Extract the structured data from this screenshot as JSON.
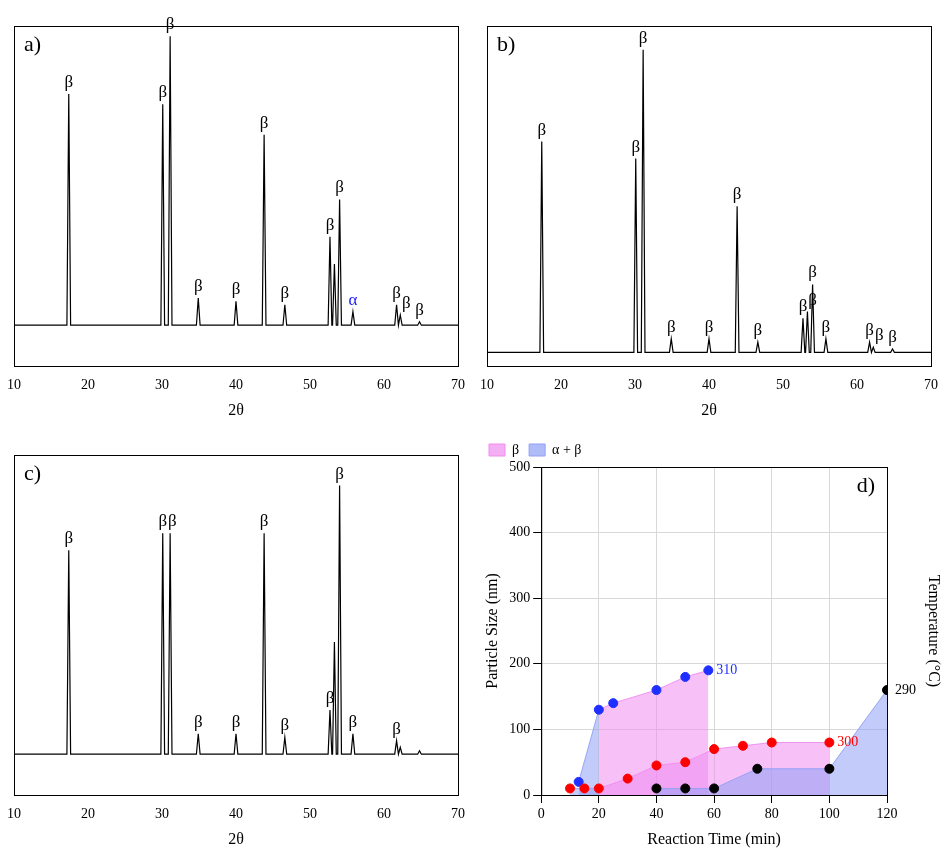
{
  "chart_data": [
    {
      "type": "line",
      "title": "a)",
      "x_label": "2θ",
      "color": "#000000",
      "xlim": [
        10,
        70
      ],
      "xticks": [
        10,
        20,
        30,
        40,
        50,
        60,
        70
      ],
      "ylim": [
        0,
        100
      ],
      "tick_labels": "x",
      "grid": false,
      "x": [
        10,
        17.15,
        17.4,
        17.65,
        29.85,
        30.1,
        30.35,
        30.85,
        31.1,
        31.35,
        34.65,
        34.9,
        35.15,
        39.75,
        40,
        40.25,
        43.55,
        43.8,
        44.05,
        46.35,
        46.6,
        46.85,
        52.45,
        52.7,
        52.95,
        53.05,
        53.3,
        53.55,
        53.75,
        54,
        54.25,
        55.55,
        55.8,
        56.05,
        61.45,
        61.7,
        61.95,
        61.95,
        62.2,
        62.45,
        64.55,
        64.8,
        65.05,
        70
      ],
      "values": [
        12,
        12,
        80,
        12,
        12,
        77,
        12,
        12,
        97,
        12,
        12,
        20,
        12,
        12,
        19,
        12,
        12,
        68,
        12,
        12,
        18,
        12,
        12,
        38,
        12,
        12,
        30,
        12,
        12,
        49,
        12,
        12,
        16,
        12,
        12,
        18,
        12,
        12,
        15,
        12,
        12,
        13,
        12,
        12
      ],
      "peak_labels": [
        {
          "x": 17.4,
          "text": "β",
          "color": "#000000"
        },
        {
          "x": 30.1,
          "text": "β",
          "color": "#000000"
        },
        {
          "x": 31.1,
          "text": "β",
          "color": "#000000"
        },
        {
          "x": 34.9,
          "text": "β",
          "color": "#000000"
        },
        {
          "x": 40,
          "text": "β",
          "color": "#000000"
        },
        {
          "x": 43.8,
          "text": "β",
          "color": "#000000"
        },
        {
          "x": 46.6,
          "text": "β",
          "color": "#000000"
        },
        {
          "x": 52.7,
          "text": "β",
          "color": "#000000"
        },
        {
          "x": 54,
          "text": "β",
          "color": "#000000"
        },
        {
          "x": 55.8,
          "text": "α",
          "color": "#1a1aff"
        },
        {
          "x": 61.7,
          "text": "β",
          "color": "#000000"
        },
        {
          "x": 62.2,
          "text": "β",
          "color": "#000000"
        },
        {
          "x": 64.8,
          "text": "β",
          "color": "#000000"
        }
      ]
    },
    {
      "type": "line",
      "title": "b)",
      "x_label": "2θ",
      "color": "#000000",
      "xlim": [
        10,
        70
      ],
      "xticks": [
        10,
        20,
        30,
        40,
        50,
        60,
        70
      ],
      "ylim": [
        0,
        100
      ],
      "tick_labels": "x",
      "grid": false,
      "x": [
        10,
        17.15,
        17.4,
        17.65,
        29.85,
        30.1,
        30.35,
        30.85,
        31.1,
        31.35,
        34.65,
        34.9,
        35.15,
        39.75,
        40,
        40.25,
        43.55,
        43.8,
        44.05,
        46.35,
        46.6,
        46.85,
        52.45,
        52.7,
        52.95,
        53.05,
        53.3,
        53.55,
        53.75,
        54,
        54.25,
        55.55,
        55.8,
        56.05,
        61.45,
        61.7,
        61.95,
        61.95,
        62.2,
        62.45,
        64.55,
        64.8,
        65.05,
        70
      ],
      "values": [
        4,
        4,
        66,
        4,
        4,
        61,
        4,
        4,
        93,
        4,
        4,
        8,
        4,
        4,
        8,
        4,
        4,
        47,
        4,
        4,
        7,
        4,
        4,
        14,
        4,
        4,
        16,
        4,
        4,
        24,
        4,
        4,
        8,
        4,
        4,
        7,
        4,
        4,
        5.5,
        4,
        4,
        5,
        4,
        4
      ],
      "peak_labels": [
        {
          "x": 17.4,
          "text": "β",
          "color": "#000000"
        },
        {
          "x": 30.1,
          "text": "β",
          "color": "#000000"
        },
        {
          "x": 31.1,
          "text": "β",
          "color": "#000000"
        },
        {
          "x": 34.9,
          "text": "β",
          "color": "#000000"
        },
        {
          "x": 40,
          "text": "β",
          "color": "#000000"
        },
        {
          "x": 43.8,
          "text": "β",
          "color": "#000000"
        },
        {
          "x": 46.6,
          "text": "β",
          "color": "#000000"
        },
        {
          "x": 52.7,
          "text": "β",
          "color": "#000000"
        },
        {
          "x": 53.3,
          "text": "β",
          "color": "#000000"
        },
        {
          "x": 54,
          "text": "β",
          "color": "#000000"
        },
        {
          "x": 55.8,
          "text": "β",
          "color": "#000000"
        },
        {
          "x": 61.7,
          "text": "β",
          "color": "#000000"
        },
        {
          "x": 62.2,
          "text": "β",
          "color": "#000000"
        },
        {
          "x": 64.8,
          "text": "β",
          "color": "#000000"
        }
      ]
    },
    {
      "type": "line",
      "title": "c)",
      "x_label": "2θ",
      "color": "#000000",
      "xlim": [
        10,
        70
      ],
      "xticks": [
        10,
        20,
        30,
        40,
        50,
        60,
        70
      ],
      "ylim": [
        0,
        100
      ],
      "tick_labels": "x",
      "grid": false,
      "x": [
        10,
        17.15,
        17.4,
        17.65,
        29.85,
        30.1,
        30.35,
        30.85,
        31.1,
        31.35,
        34.65,
        34.9,
        35.15,
        39.75,
        40,
        40.25,
        43.55,
        43.8,
        44.05,
        46.35,
        46.6,
        46.85,
        52.45,
        52.7,
        52.95,
        53.05,
        53.3,
        53.55,
        53.75,
        54,
        54.25,
        55.55,
        55.8,
        56.05,
        61.45,
        61.7,
        61.95,
        61.95,
        62.2,
        62.45,
        64.55,
        64.8,
        65.05,
        70
      ],
      "values": [
        12,
        12,
        72,
        12,
        12,
        77,
        12,
        12,
        77,
        12,
        12,
        18,
        12,
        12,
        18,
        12,
        12,
        77,
        12,
        12,
        17,
        12,
        12,
        25,
        12,
        12,
        45,
        12,
        12,
        91,
        12,
        12,
        18,
        12,
        12,
        16,
        12,
        12,
        14,
        12,
        12,
        13,
        12,
        12
      ],
      "peak_labels": [
        {
          "x": 17.4,
          "text": "β",
          "color": "#000000"
        },
        {
          "x": 30.1,
          "text": "β",
          "color": "#000000"
        },
        {
          "x": 31.1,
          "text": "β",
          "color": "#000000"
        },
        {
          "x": 34.9,
          "text": "β",
          "color": "#000000"
        },
        {
          "x": 40,
          "text": "β",
          "color": "#000000"
        },
        {
          "x": 43.8,
          "text": "β",
          "color": "#000000"
        },
        {
          "x": 46.6,
          "text": "β",
          "color": "#000000"
        },
        {
          "x": 52.7,
          "text": "β",
          "color": "#000000"
        },
        {
          "x": 54,
          "text": "β",
          "color": "#000000"
        },
        {
          "x": 55.8,
          "text": "β",
          "color": "#000000"
        },
        {
          "x": 61.7,
          "text": "β",
          "color": "#000000"
        }
      ]
    },
    {
      "type": "scatter",
      "title": "d)",
      "x_label": "Reaction Time (min)",
      "y_label": "Particle Size (nm)",
      "z_label": "Temperature (°C)",
      "xlim": [
        0,
        120
      ],
      "xticks": [
        0,
        20,
        40,
        60,
        80,
        100,
        120
      ],
      "ylim": [
        0,
        500
      ],
      "yticks": [
        0,
        100,
        200,
        300,
        400,
        500
      ],
      "grid": true,
      "legend": "top-left",
      "phases": [
        {
          "name": "β",
          "color": "#f08cf0"
        },
        {
          "name": "α + β",
          "color": "#8fa0f5"
        }
      ],
      "series": [
        {
          "temperature": 290,
          "color": "#000000",
          "marker": "circle",
          "x": [
            40,
            50,
            60,
            75,
            100,
            120
          ],
          "values": [
            10,
            10,
            10,
            40,
            40,
            160
          ],
          "phases": [
            "α + β",
            "α + β",
            "α + β",
            "α + β",
            "α + β",
            "α + β"
          ]
        },
        {
          "temperature": 300,
          "color": "#ff0000",
          "marker": "circle",
          "x": [
            10,
            15,
            20,
            30,
            40,
            50,
            60,
            70,
            80,
            100
          ],
          "values": [
            10,
            10,
            10,
            25,
            45,
            50,
            70,
            75,
            80,
            80
          ],
          "phases": [
            "α + β",
            "α + β",
            "β",
            "β",
            "β",
            "β",
            "β",
            "β",
            "β",
            "β"
          ]
        },
        {
          "temperature": 310,
          "color": "#1f2fff",
          "marker": "circle",
          "x": [
            13,
            20,
            25,
            40,
            50,
            58
          ],
          "values": [
            20,
            130,
            140,
            160,
            180,
            190
          ],
          "phases": [
            "α + β",
            "β",
            "β",
            "β",
            "β",
            "β"
          ]
        }
      ]
    }
  ]
}
